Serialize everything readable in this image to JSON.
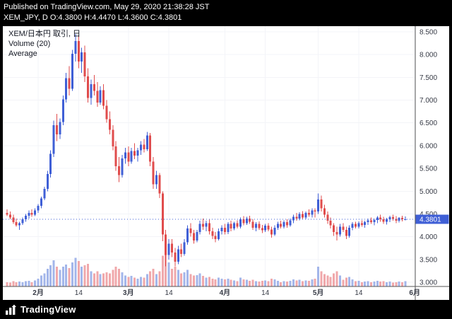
{
  "header": {
    "published_line": "Published on TradingView.com, May 29, 2020 21:38:28 JST",
    "symbol_line": "XEM_JPY, D O:4.3800 H:4.4470 L:4.3600 C:4.3801"
  },
  "footer": {
    "brand": "TradingView"
  },
  "chart": {
    "legend": {
      "title": "XEM/日本円 取引, 日",
      "volume": "Volume (20)",
      "average": "Average"
    },
    "price_label": "4.3801"
  },
  "chart_data": {
    "type": "candlestick",
    "title": "XEM/日本円 取引, 日",
    "symbol": "XEM_JPY",
    "interval": "D",
    "ohlc_today": {
      "open": 4.38,
      "high": 4.447,
      "low": 4.36,
      "close": 4.3801
    },
    "current_price": 4.3801,
    "ylim": [
      3.0,
      8.5
    ],
    "grid": true,
    "price_ticks": [
      {
        "value": 8.5,
        "label": "8.500"
      },
      {
        "value": 8.0,
        "label": "8.000"
      },
      {
        "value": 7.5,
        "label": "7.500"
      },
      {
        "value": 7.0,
        "label": "7.000"
      },
      {
        "value": 6.5,
        "label": "6.500"
      },
      {
        "value": 6.0,
        "label": "6.000"
      },
      {
        "value": 5.5,
        "label": "5.500"
      },
      {
        "value": 5.0,
        "label": "5.000"
      },
      {
        "value": 4.5,
        "label": "4.500"
      },
      {
        "value": 4.0,
        "label": "4.000"
      },
      {
        "value": 3.5,
        "label": "3.500"
      },
      {
        "value": 3.0,
        "label": "3.000"
      }
    ],
    "time_ticks": [
      {
        "index": 10,
        "label": "2月",
        "major": true
      },
      {
        "index": 23,
        "label": "14"
      },
      {
        "index": 39,
        "label": "3月",
        "major": true
      },
      {
        "index": 52,
        "label": "14"
      },
      {
        "index": 70,
        "label": "4月",
        "major": true
      },
      {
        "index": 83,
        "label": "14"
      },
      {
        "index": 100,
        "label": "5月",
        "major": true
      },
      {
        "index": 113,
        "label": "14"
      },
      {
        "index": 131,
        "label": "6月",
        "major": true
      }
    ],
    "colors": {
      "up": "#3f5fd6",
      "down": "#e04c4c",
      "volume_up": "#a3b6ea",
      "volume_down": "#f0a8ab",
      "price_line": "#3f5fd6",
      "price_badge_bg": "#3f5fd6",
      "price_badge_text": "#ffffff",
      "axis_text": "#363a45",
      "axis_line": "#555555",
      "grid": "#f3f4f8"
    },
    "candles_format": [
      "open",
      "high",
      "low",
      "close",
      "volume_rel"
    ],
    "candles": [
      [
        4.52,
        4.6,
        4.45,
        4.48,
        10
      ],
      [
        4.48,
        4.55,
        4.38,
        4.42,
        9
      ],
      [
        4.42,
        4.48,
        4.28,
        4.32,
        12
      ],
      [
        4.32,
        4.4,
        4.22,
        4.25,
        10
      ],
      [
        4.25,
        4.33,
        4.15,
        4.3,
        11
      ],
      [
        4.3,
        4.42,
        4.26,
        4.38,
        10
      ],
      [
        4.38,
        4.5,
        4.33,
        4.46,
        12
      ],
      [
        4.46,
        4.58,
        4.4,
        4.52,
        13
      ],
      [
        4.52,
        4.6,
        4.44,
        4.48,
        10
      ],
      [
        4.48,
        4.62,
        4.45,
        4.58,
        14
      ],
      [
        4.58,
        4.72,
        4.52,
        4.68,
        18
      ],
      [
        4.68,
        4.88,
        4.62,
        4.84,
        25
      ],
      [
        4.84,
        5.1,
        4.8,
        5.05,
        30
      ],
      [
        5.05,
        5.45,
        5.0,
        5.38,
        40
      ],
      [
        5.38,
        5.9,
        5.3,
        5.82,
        48
      ],
      [
        5.82,
        6.55,
        5.75,
        6.45,
        60
      ],
      [
        6.45,
        6.7,
        6.1,
        6.25,
        45
      ],
      [
        6.25,
        6.6,
        6.15,
        6.52,
        38
      ],
      [
        6.52,
        7.1,
        6.45,
        7.02,
        45
      ],
      [
        7.02,
        7.6,
        6.95,
        7.48,
        50
      ],
      [
        7.48,
        7.75,
        7.1,
        7.25,
        42
      ],
      [
        7.25,
        8.1,
        7.2,
        8.02,
        55
      ],
      [
        8.02,
        8.45,
        7.85,
        8.3,
        65
      ],
      [
        8.3,
        8.42,
        7.7,
        7.85,
        58
      ],
      [
        7.85,
        8.15,
        7.6,
        8.05,
        45
      ],
      [
        8.05,
        8.2,
        7.4,
        7.52,
        48
      ],
      [
        7.52,
        7.7,
        6.95,
        7.05,
        52
      ],
      [
        7.05,
        7.45,
        6.9,
        7.35,
        35
      ],
      [
        7.35,
        7.55,
        7.1,
        7.2,
        30
      ],
      [
        7.2,
        7.4,
        6.85,
        6.95,
        35
      ],
      [
        6.95,
        7.3,
        6.9,
        7.22,
        28
      ],
      [
        7.22,
        7.35,
        6.8,
        6.88,
        30
      ],
      [
        6.88,
        7.0,
        6.5,
        6.58,
        32
      ],
      [
        6.58,
        6.75,
        6.25,
        6.35,
        30
      ],
      [
        6.35,
        6.45,
        5.9,
        5.98,
        38
      ],
      [
        5.98,
        6.1,
        5.45,
        5.55,
        45
      ],
      [
        5.55,
        5.75,
        5.2,
        5.35,
        40
      ],
      [
        5.35,
        5.8,
        5.3,
        5.72,
        32
      ],
      [
        5.72,
        5.95,
        5.6,
        5.85,
        25
      ],
      [
        5.85,
        5.98,
        5.55,
        5.65,
        22
      ],
      [
        5.65,
        5.95,
        5.6,
        5.88,
        24
      ],
      [
        5.88,
        6.05,
        5.7,
        5.78,
        20
      ],
      [
        5.78,
        5.95,
        5.65,
        5.9,
        18
      ],
      [
        5.9,
        6.1,
        5.8,
        6.02,
        22
      ],
      [
        6.02,
        6.15,
        5.85,
        5.92,
        20
      ],
      [
        5.92,
        6.3,
        5.88,
        6.22,
        28
      ],
      [
        6.22,
        6.28,
        5.55,
        5.65,
        35
      ],
      [
        5.65,
        5.75,
        5.05,
        5.15,
        40
      ],
      [
        5.15,
        5.45,
        5.05,
        5.35,
        28
      ],
      [
        5.35,
        5.4,
        4.85,
        4.95,
        35
      ],
      [
        4.95,
        5.0,
        3.9,
        4.05,
        70
      ],
      [
        4.05,
        4.15,
        3.35,
        3.6,
        85
      ],
      [
        3.6,
        3.95,
        3.5,
        3.85,
        55
      ],
      [
        3.85,
        3.95,
        3.55,
        3.65,
        40
      ],
      [
        3.65,
        3.75,
        3.35,
        3.45,
        45
      ],
      [
        3.45,
        3.8,
        3.4,
        3.72,
        38
      ],
      [
        3.72,
        3.85,
        3.55,
        3.62,
        30
      ],
      [
        3.62,
        3.95,
        3.58,
        3.88,
        32
      ],
      [
        3.88,
        4.25,
        3.82,
        4.18,
        38
      ],
      [
        4.18,
        4.3,
        4.0,
        4.08,
        28
      ],
      [
        4.08,
        4.15,
        3.85,
        3.92,
        25
      ],
      [
        3.92,
        4.15,
        3.88,
        4.1,
        26
      ],
      [
        4.1,
        4.35,
        4.05,
        4.28,
        30
      ],
      [
        4.28,
        4.4,
        4.15,
        4.22,
        24
      ],
      [
        4.22,
        4.35,
        4.12,
        4.3,
        20
      ],
      [
        4.3,
        4.38,
        4.05,
        4.12,
        22
      ],
      [
        4.12,
        4.2,
        3.95,
        4.02,
        18
      ],
      [
        4.02,
        4.1,
        3.88,
        3.95,
        16
      ],
      [
        3.95,
        4.18,
        3.92,
        4.12,
        20
      ],
      [
        4.12,
        4.25,
        4.05,
        4.2,
        18
      ],
      [
        4.2,
        4.28,
        4.05,
        4.1,
        16
      ],
      [
        4.1,
        4.32,
        4.06,
        4.28,
        18
      ],
      [
        4.28,
        4.35,
        4.12,
        4.18,
        15
      ],
      [
        4.18,
        4.33,
        4.14,
        4.3,
        14
      ],
      [
        4.3,
        4.36,
        4.18,
        4.22,
        12
      ],
      [
        4.22,
        4.42,
        4.18,
        4.38,
        20
      ],
      [
        4.38,
        4.45,
        4.25,
        4.3,
        16
      ],
      [
        4.3,
        4.44,
        4.26,
        4.4,
        15
      ],
      [
        4.4,
        4.46,
        4.28,
        4.33,
        13
      ],
      [
        4.33,
        4.38,
        4.15,
        4.2,
        15
      ],
      [
        4.2,
        4.32,
        4.12,
        4.28,
        12
      ],
      [
        4.28,
        4.34,
        4.15,
        4.19,
        11
      ],
      [
        4.19,
        4.26,
        4.08,
        4.14,
        13
      ],
      [
        4.14,
        4.28,
        4.1,
        4.24,
        14
      ],
      [
        4.24,
        4.3,
        4.12,
        4.16,
        12
      ],
      [
        4.16,
        4.22,
        3.98,
        4.05,
        18
      ],
      [
        4.05,
        4.25,
        4.02,
        4.2,
        16
      ],
      [
        4.2,
        4.33,
        4.15,
        4.28,
        13
      ],
      [
        4.28,
        4.35,
        4.18,
        4.22,
        10
      ],
      [
        4.22,
        4.36,
        4.18,
        4.32,
        12
      ],
      [
        4.32,
        4.38,
        4.2,
        4.25,
        11
      ],
      [
        4.25,
        4.4,
        4.22,
        4.36,
        13
      ],
      [
        4.36,
        4.48,
        4.3,
        4.44,
        16
      ],
      [
        4.44,
        4.52,
        4.35,
        4.4,
        14
      ],
      [
        4.4,
        4.54,
        4.36,
        4.5,
        15
      ],
      [
        4.5,
        4.56,
        4.38,
        4.42,
        12
      ],
      [
        4.42,
        4.55,
        4.38,
        4.52,
        14
      ],
      [
        4.52,
        4.6,
        4.44,
        4.48,
        13
      ],
      [
        4.48,
        4.62,
        4.42,
        4.58,
        16
      ],
      [
        4.58,
        4.62,
        4.42,
        4.55,
        18
      ],
      [
        4.55,
        4.95,
        4.5,
        4.82,
        45
      ],
      [
        4.82,
        4.9,
        4.55,
        4.62,
        35
      ],
      [
        4.62,
        4.7,
        4.42,
        4.48,
        28
      ],
      [
        4.48,
        4.55,
        4.28,
        4.35,
        25
      ],
      [
        4.35,
        4.42,
        4.18,
        4.25,
        22
      ],
      [
        4.25,
        4.3,
        4.02,
        4.1,
        30
      ],
      [
        4.1,
        4.22,
        3.92,
        4.05,
        35
      ],
      [
        4.05,
        4.28,
        4.0,
        4.22,
        25
      ],
      [
        4.22,
        4.3,
        4.1,
        4.15,
        15
      ],
      [
        4.15,
        4.22,
        3.95,
        4.02,
        20
      ],
      [
        4.02,
        4.25,
        3.98,
        4.2,
        22
      ],
      [
        4.2,
        4.32,
        4.14,
        4.28,
        16
      ],
      [
        4.28,
        4.33,
        4.18,
        4.22,
        12
      ],
      [
        4.22,
        4.34,
        4.18,
        4.3,
        13
      ],
      [
        4.3,
        4.36,
        4.22,
        4.26,
        10
      ],
      [
        4.26,
        4.35,
        4.2,
        4.32,
        11
      ],
      [
        4.32,
        4.4,
        4.26,
        4.36,
        12
      ],
      [
        4.36,
        4.42,
        4.28,
        4.32,
        10
      ],
      [
        4.32,
        4.4,
        4.25,
        4.37,
        11
      ],
      [
        4.37,
        4.45,
        4.3,
        4.42,
        13
      ],
      [
        4.42,
        4.48,
        4.33,
        4.38,
        11
      ],
      [
        4.38,
        4.44,
        4.28,
        4.33,
        12
      ],
      [
        4.33,
        4.41,
        4.27,
        4.38,
        10
      ],
      [
        4.38,
        4.46,
        4.32,
        4.43,
        11
      ],
      [
        4.43,
        4.48,
        4.35,
        4.39,
        9
      ],
      [
        4.39,
        4.45,
        4.3,
        4.35,
        10
      ],
      [
        4.35,
        4.43,
        4.31,
        4.41,
        11
      ],
      [
        4.41,
        4.46,
        4.34,
        4.38,
        10
      ],
      [
        4.38,
        4.447,
        4.36,
        4.3801,
        12
      ]
    ]
  }
}
